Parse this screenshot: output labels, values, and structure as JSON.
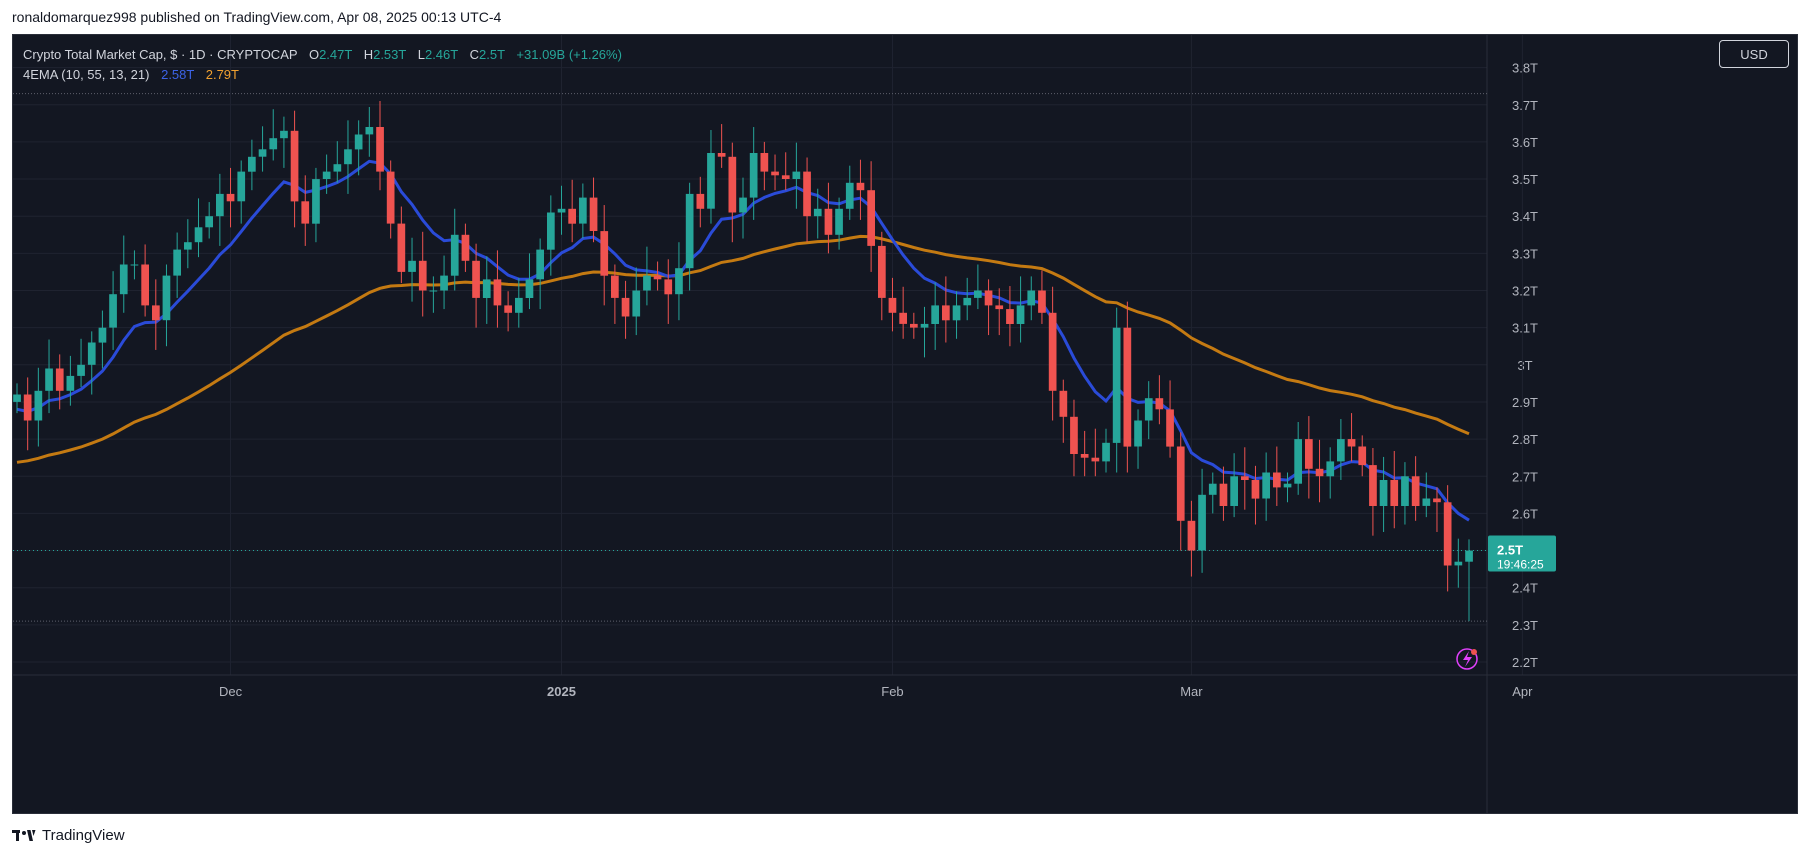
{
  "header": {
    "published_text": "ronaldomarquez998 published on TradingView.com, Apr 08, 2025 00:13 UTC-4"
  },
  "legend": {
    "symbol": "Crypto Total Market Cap, $ · 1D · CRYPTOCAP",
    "o_label": "O",
    "o_value": "2.47T",
    "h_label": "H",
    "h_value": "2.53T",
    "l_label": "L",
    "l_value": "2.46T",
    "c_label": "C",
    "c_value": "2.5T",
    "change": "+31.09B (+1.26%)",
    "indicator": "4EMA (10, 55, 13, 21)",
    "ema1_value": "2.58T",
    "ema2_value": "2.79T"
  },
  "currency_button": "USD",
  "price_tag": {
    "price": "2.5T",
    "countdown": "19:46:25"
  },
  "footer": {
    "brand": "TradingView"
  },
  "colors": {
    "up": "#26a69a",
    "down": "#ef5350",
    "ema_fast": "#2a4bd8",
    "ema_slow": "#c47a12",
    "bg": "#131722"
  },
  "chart_data": {
    "type": "candlestick",
    "title": "Crypto Total Market Cap, $ · 1D · CRYPTOCAP",
    "y_axis": {
      "unit": "T",
      "ylim": [
        2.17,
        3.83
      ],
      "ticks": [
        2.2,
        2.3,
        2.4,
        2.5,
        2.6,
        2.7,
        2.8,
        2.9,
        3.0,
        3.1,
        3.2,
        3.3,
        3.4,
        3.5,
        3.6,
        3.7,
        3.8
      ],
      "tick_labels": [
        "2.2T",
        "2.3T",
        "2.4T",
        "2.5T",
        "2.6T",
        "2.7T",
        "2.8T",
        "2.9T",
        "3T",
        "3.1T",
        "3.2T",
        "3.3T",
        "3.4T",
        "3.5T",
        "3.6T",
        "3.7T",
        "3.8T"
      ]
    },
    "x_axis": {
      "first_date": "2024-11-11",
      "last_date": "2025-04-07",
      "labels": [
        {
          "text": "Dec",
          "date": "2024-12-01",
          "bold": false
        },
        {
          "text": "2025",
          "date": "2025-01-01",
          "bold": true
        },
        {
          "text": "Feb",
          "date": "2025-02-01",
          "bold": false
        },
        {
          "text": "Mar",
          "date": "2025-03-01",
          "bold": false
        },
        {
          "text": "Apr",
          "date": "2025-04-01",
          "bold": false
        }
      ]
    },
    "close_series": [
      2.92,
      2.85,
      2.93,
      2.99,
      2.93,
      2.97,
      3.0,
      3.06,
      3.1,
      3.19,
      3.27,
      3.27,
      3.16,
      3.12,
      3.24,
      3.31,
      3.33,
      3.37,
      3.4,
      3.46,
      3.44,
      3.52,
      3.56,
      3.58,
      3.61,
      3.63,
      3.44,
      3.38,
      3.5,
      3.52,
      3.54,
      3.58,
      3.62,
      3.64,
      3.52,
      3.38,
      3.25,
      3.28,
      3.2,
      3.2,
      3.24,
      3.35,
      3.28,
      3.18,
      3.23,
      3.16,
      3.14,
      3.18,
      3.23,
      3.31,
      3.41,
      3.42,
      3.38,
      3.45,
      3.36,
      3.24,
      3.18,
      3.13,
      3.2,
      3.24,
      3.23,
      3.19,
      3.26,
      3.46,
      3.42,
      3.57,
      3.56,
      3.41,
      3.45,
      3.57,
      3.52,
      3.51,
      3.5,
      3.52,
      3.4,
      3.42,
      3.35,
      3.42,
      3.49,
      3.47,
      3.32,
      3.18,
      3.14,
      3.11,
      3.1,
      3.11,
      3.16,
      3.12,
      3.16,
      3.18,
      3.2,
      3.16,
      3.15,
      3.11,
      3.16,
      3.2,
      3.14,
      2.93,
      2.86,
      2.76,
      2.75,
      2.74,
      2.79,
      3.1,
      2.78,
      2.85,
      2.91,
      2.88,
      2.78,
      2.58,
      2.5,
      2.65,
      2.68,
      2.62,
      2.7,
      2.69,
      2.64,
      2.71,
      2.67,
      2.68,
      2.8,
      2.72,
      2.7,
      2.74,
      2.8,
      2.78,
      2.73,
      2.62,
      2.69,
      2.62,
      2.7,
      2.62,
      2.64,
      2.63,
      2.46,
      2.47,
      2.5
    ],
    "ema_fast": {
      "name": "EMA 10",
      "value_label": "2.58T"
    },
    "ema_slow": {
      "name": "EMA 55",
      "value_label": "2.79T"
    },
    "last": {
      "open": 2.47,
      "high": 2.53,
      "low": 2.46,
      "close": 2.5
    },
    "grid": true
  }
}
